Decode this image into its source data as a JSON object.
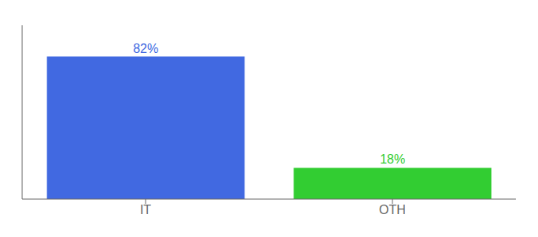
{
  "chart_data": {
    "type": "bar",
    "categories": [
      "IT",
      "OTH"
    ],
    "values": [
      82,
      18
    ],
    "value_labels": [
      "82%",
      "18%"
    ],
    "data_labels": true,
    "colors": [
      "#4169e1",
      "#32cd32"
    ],
    "ylim": [
      0,
      100
    ],
    "tick_labels": "x",
    "grid": false
  }
}
